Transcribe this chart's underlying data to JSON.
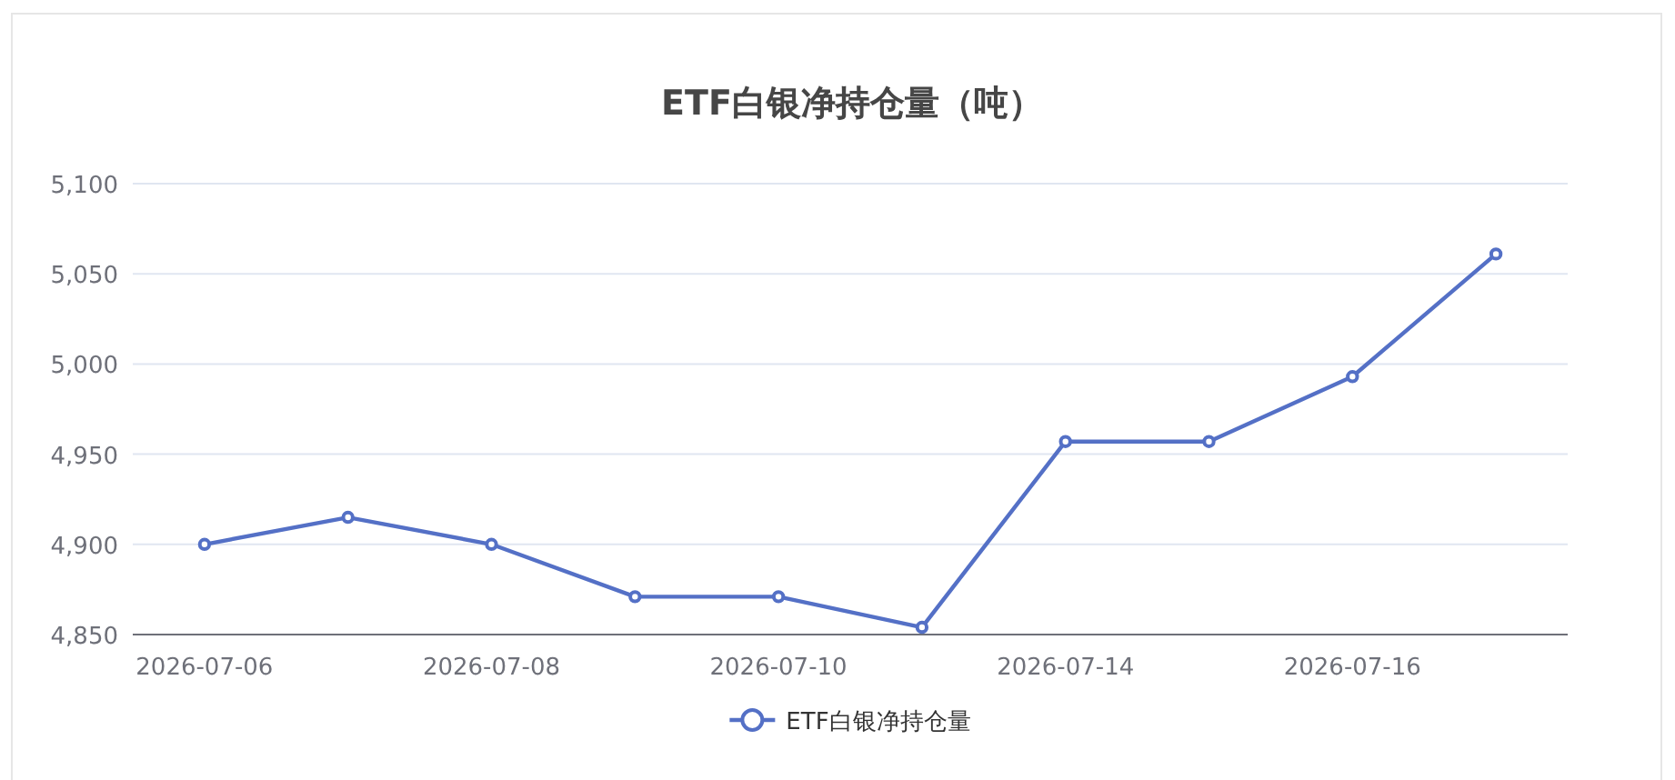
{
  "chart_data": {
    "type": "line",
    "title": "ETF白银净持仓量（吨）",
    "categories": [
      "2026-07-06",
      null,
      "2026-07-08",
      null,
      "2026-07-10",
      null,
      "2026-07-14",
      null,
      "2026-07-16",
      null
    ],
    "series": [
      {
        "name": "ETF白银净持仓量",
        "color": "#5470c6",
        "values": [
          4900,
          4915,
          4900,
          4871,
          4871,
          4854,
          4957,
          4957,
          4993,
          5061
        ]
      }
    ],
    "ylim": [
      4850,
      5100
    ],
    "yticks": [
      {
        "value": 4850,
        "label": "4,850"
      },
      {
        "value": 4900,
        "label": "4,900"
      },
      {
        "value": 4950,
        "label": "4,950"
      },
      {
        "value": 5000,
        "label": "5,000"
      },
      {
        "value": 5050,
        "label": "5,050"
      },
      {
        "value": 5100,
        "label": "5,100"
      }
    ],
    "grid": "y",
    "legend": "bottom",
    "marker": "circle",
    "line_style": "solid"
  }
}
